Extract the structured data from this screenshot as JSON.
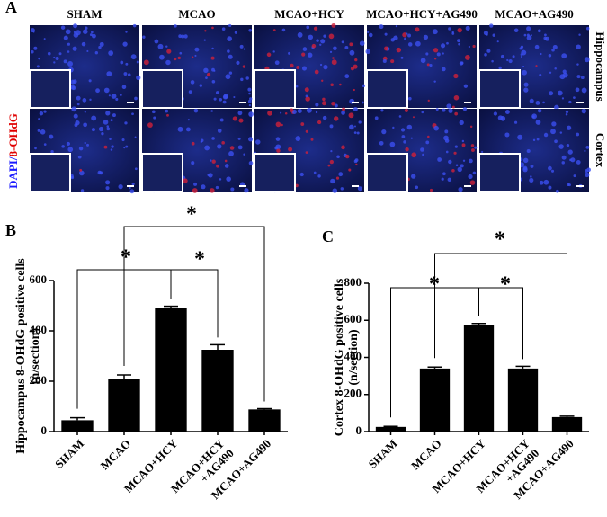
{
  "panel_a": {
    "label": "A",
    "columns": [
      "SHAM",
      "MCAO",
      "MCAO+HCY",
      "MCAO+HCY+AG490",
      "MCAO+AG490"
    ],
    "rows": [
      "Hippocampus",
      "Cortex"
    ],
    "stain_blue": "DAPI/",
    "stain_red": "8-OHdG"
  },
  "chart_data": [
    {
      "type": "bar",
      "panel_label": "B",
      "ylabel": [
        "Hippocampus 8-OHdG positive cells",
        "(n/section)"
      ],
      "categories": [
        "SHAM",
        "MCAO",
        "MCAO+HCY",
        "MCAO+HCY\n+AG490",
        "MCAO+AG490"
      ],
      "values": [
        45,
        210,
        490,
        325,
        88
      ],
      "errors": [
        10,
        15,
        8,
        20,
        3
      ],
      "color": "#000000",
      "ylim": [
        0,
        600
      ],
      "yticks": [
        0,
        200,
        400,
        600
      ],
      "annotations": [
        "*",
        "*",
        "*"
      ]
    },
    {
      "type": "bar",
      "panel_label": "C",
      "ylabel": [
        "Cortex 8-OHdG positive cells",
        "(n/section)"
      ],
      "categories": [
        "SHAM",
        "MCAO",
        "MCAO+HCY",
        "MCAO+HCY\n+AG490",
        "MCAO+AG490"
      ],
      "values": [
        25,
        340,
        575,
        340,
        78
      ],
      "errors": [
        3,
        8,
        8,
        12,
        5
      ],
      "color": "#000000",
      "ylim": [
        0,
        800
      ],
      "yticks": [
        0,
        200,
        400,
        600,
        800
      ],
      "annotations": [
        "*",
        "*",
        "*"
      ]
    }
  ]
}
